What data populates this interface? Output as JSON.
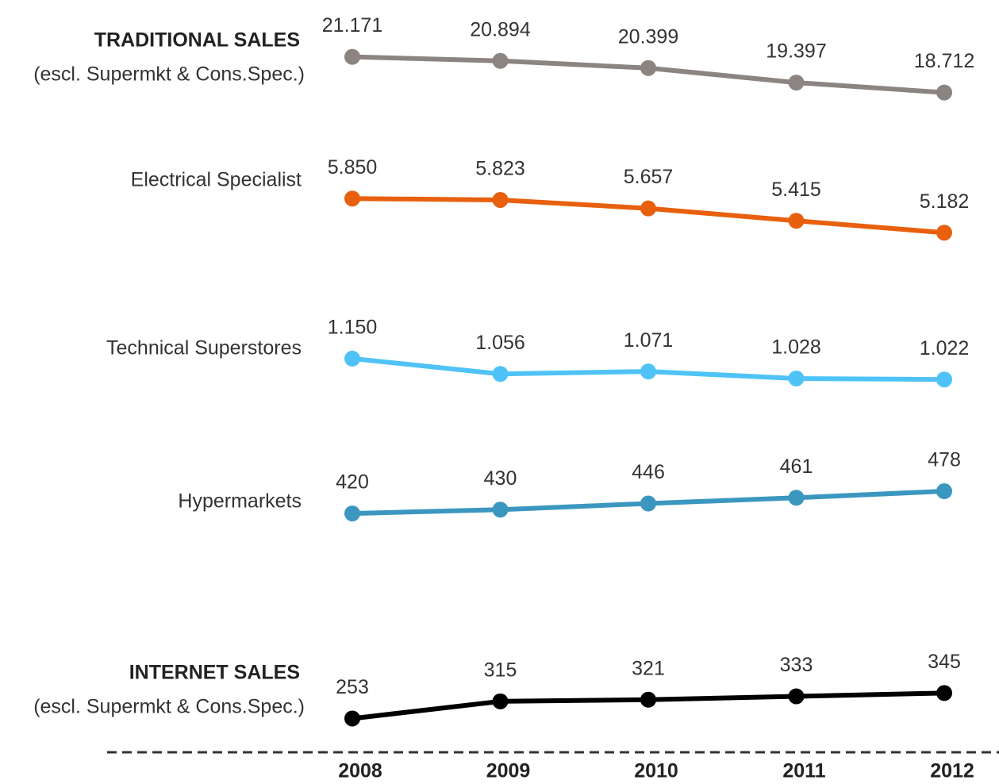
{
  "chart_data": {
    "type": "line",
    "categories": [
      "2008",
      "2009",
      "2010",
      "2011",
      "2012"
    ],
    "series": [
      {
        "name": "TRADITIONAL SALES",
        "note": "(escl. Supermkt & Cons.Spec.)",
        "color": "#8c8480",
        "ylim": [
          14700,
          22900
        ],
        "values": [
          21171,
          20894,
          20399,
          19397,
          18712
        ],
        "value_labels": [
          "21.171",
          "20.894",
          "20.399",
          "19.397",
          "18.712"
        ]
      },
      {
        "name": "Electrical Specialist",
        "color": "#e8600e",
        "ylim": [
          4300,
          6630
        ],
        "values": [
          5850,
          5823,
          5657,
          5415,
          5182
        ],
        "value_labels": [
          "5.850",
          "5.823",
          "5.657",
          "5.415",
          "5.182"
        ]
      },
      {
        "name": "Technical Superstores",
        "color": "#4fc3f7",
        "ylim": [
          770,
          1500
        ],
        "values": [
          1150,
          1056,
          1071,
          1028,
          1022
        ],
        "value_labels": [
          "1.150",
          "1.056",
          "1.071",
          "1.028",
          "1.022"
        ]
      },
      {
        "name": "Hypermarkets",
        "color": "#3b97c0",
        "ylim": [
          290,
          600
        ],
        "values": [
          420,
          430,
          446,
          461,
          478
        ]
      },
      {
        "name": "INTERNET SALES",
        "note": "(escl. Supermkt & Cons.Spec.)",
        "color": "#000000",
        "ylim": [
          240,
          670
        ],
        "values": [
          253,
          315,
          321,
          333,
          345
        ]
      }
    ]
  }
}
